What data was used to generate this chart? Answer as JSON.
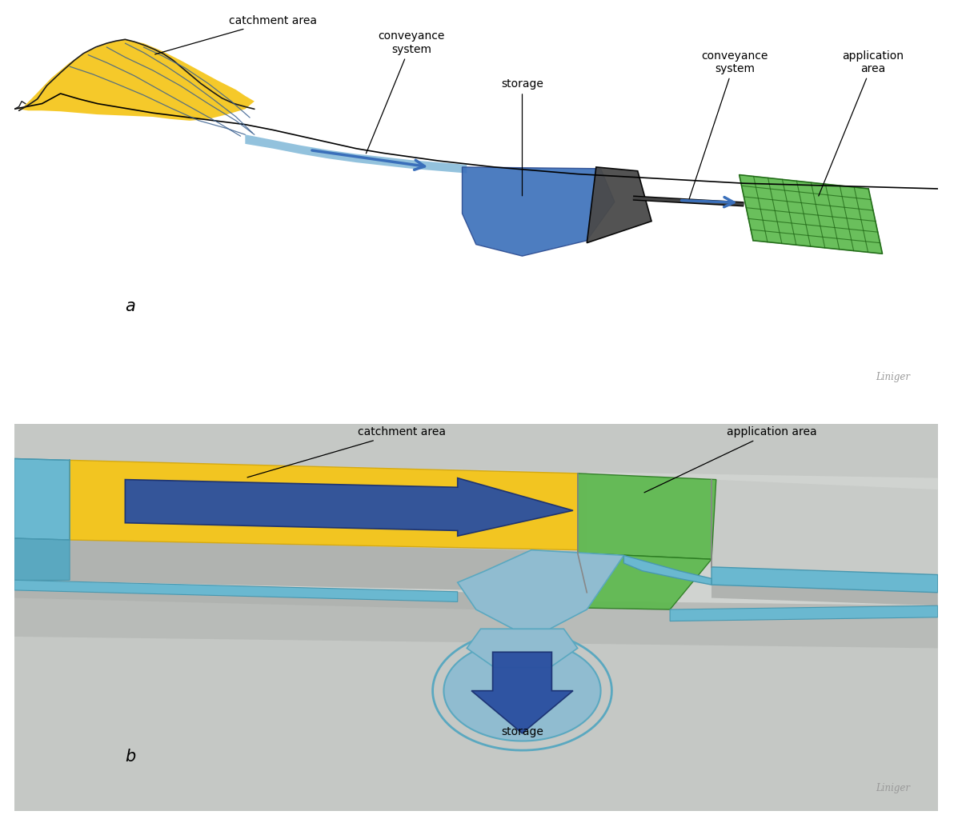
{
  "fig_bg": "#ffffff",
  "border_color": "#6a9ab0",
  "orange_fill": "#f5c518",
  "blue_fill": "#3a6fba",
  "blue_arrow": "#2a4fa0",
  "light_blue": "#80b8d8",
  "lighter_blue": "#aed4e8",
  "green_fill": "#5ab84a",
  "gray_bg": "#c5c8c5",
  "gray_platform": "#cbcecb",
  "gray_dark": "#555555",
  "panel_bg_a": "#f8f5e8",
  "panel_bg_b": "#f8f5e8",
  "label_a": "a",
  "label_b": "b",
  "title_a_catchment": "catchment area",
  "title_a_conveyance1": "conveyance\nsystem",
  "title_a_storage": "storage",
  "title_a_conveyance2": "conveyance\nsystem",
  "title_a_application": "application\narea",
  "title_b_catchment": "catchment area",
  "title_b_application": "application area",
  "title_b_storage": "storage",
  "watermark": "Liniger",
  "fs": 10,
  "fs_panel": 15
}
